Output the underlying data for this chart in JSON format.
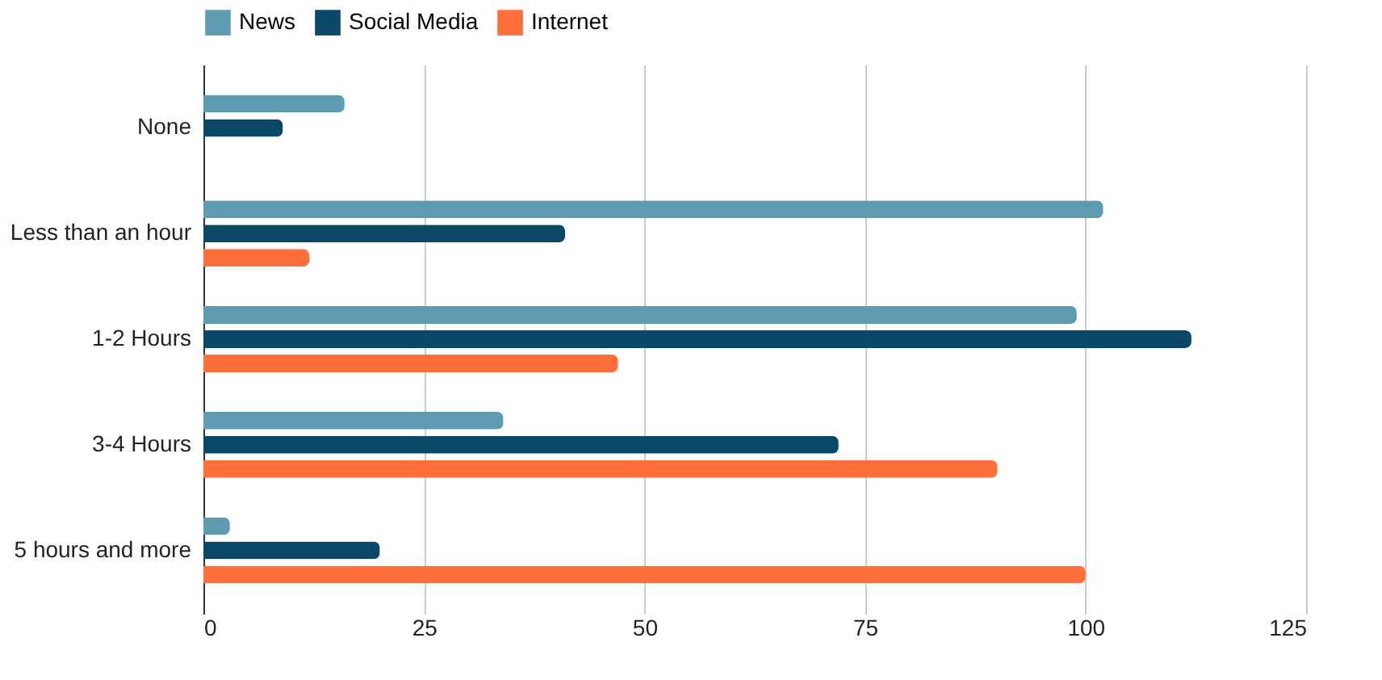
{
  "chart_data": {
    "type": "bar",
    "orientation": "horizontal",
    "categories": [
      "None",
      "Less than an hour",
      "1-2 Hours",
      "3-4 Hours",
      "5 hours and more"
    ],
    "series": [
      {
        "name": "News",
        "color": "#5f9ab3",
        "values": [
          16,
          102,
          99,
          34,
          3
        ]
      },
      {
        "name": "Social Media",
        "color": "#0b4868",
        "values": [
          9,
          41,
          112,
          72,
          20
        ]
      },
      {
        "name": "Internet",
        "color": "#ff6f3b",
        "values": [
          0,
          12,
          47,
          90,
          100
        ]
      }
    ],
    "xlim": [
      0,
      125
    ],
    "xticks": [
      0,
      25,
      50,
      75,
      100,
      125
    ],
    "grid": "x",
    "legend": "top"
  }
}
